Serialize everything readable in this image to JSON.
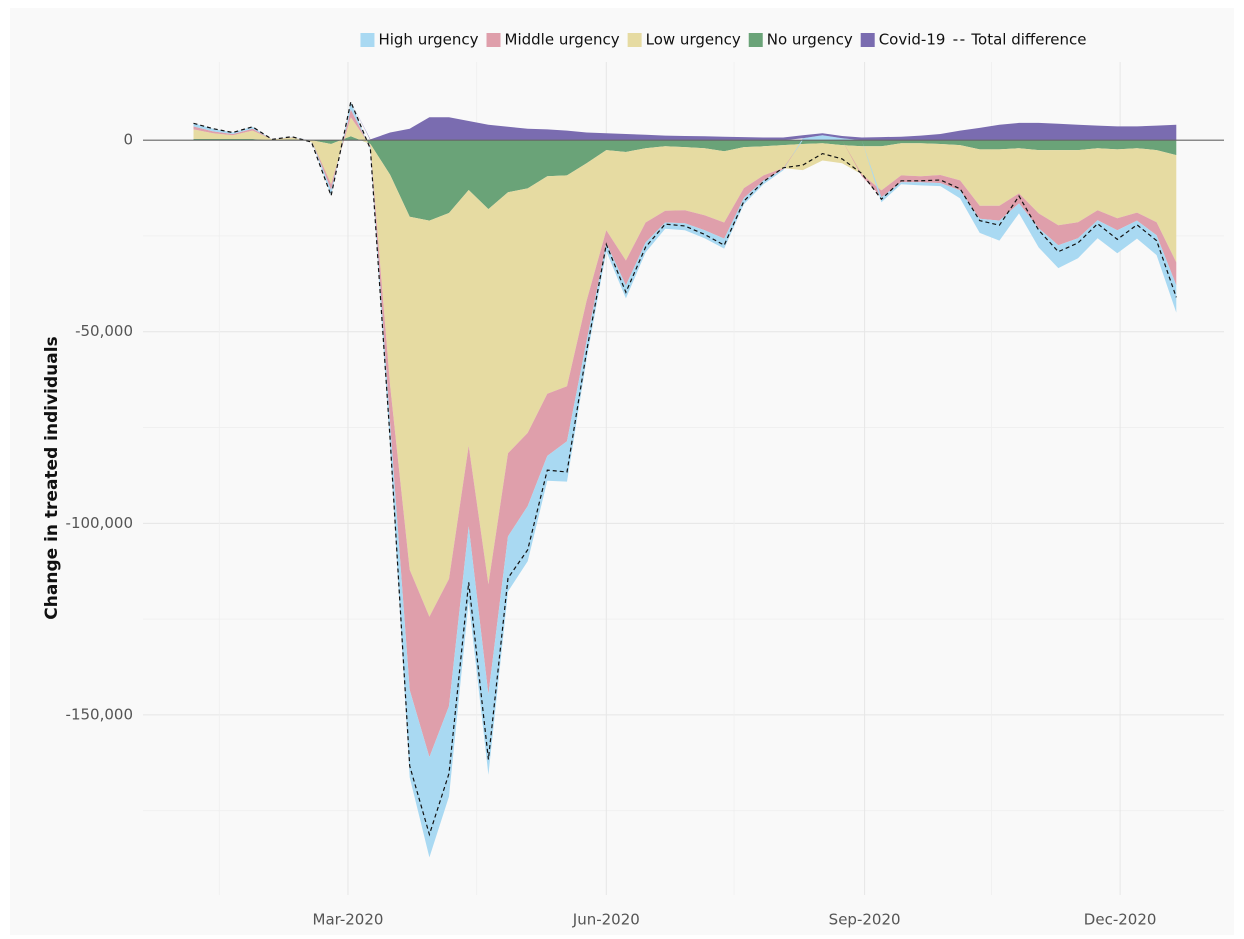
{
  "chart_data": {
    "type": "area",
    "y_label": "Change in treated individuals",
    "x": [
      "2020-01-06",
      "2020-01-13",
      "2020-01-20",
      "2020-01-27",
      "2020-02-03",
      "2020-02-10",
      "2020-02-17",
      "2020-02-24",
      "2020-03-02",
      "2020-03-09",
      "2020-03-16",
      "2020-03-23",
      "2020-03-30",
      "2020-04-06",
      "2020-04-13",
      "2020-04-20",
      "2020-04-27",
      "2020-05-04",
      "2020-05-11",
      "2020-05-18",
      "2020-05-25",
      "2020-06-01",
      "2020-06-08",
      "2020-06-15",
      "2020-06-22",
      "2020-06-29",
      "2020-07-06",
      "2020-07-13",
      "2020-07-20",
      "2020-07-27",
      "2020-08-03",
      "2020-08-10",
      "2020-08-17",
      "2020-08-24",
      "2020-08-31",
      "2020-09-07",
      "2020-09-14",
      "2020-09-21",
      "2020-09-28",
      "2020-10-05",
      "2020-10-12",
      "2020-10-19",
      "2020-10-26",
      "2020-11-02",
      "2020-11-09",
      "2020-11-16",
      "2020-11-23",
      "2020-11-30",
      "2020-12-07",
      "2020-12-14",
      "2020-12-21"
    ],
    "series": [
      {
        "name": "High urgency",
        "color": "#a9d9f2",
        "values": [
          800,
          700,
          400,
          500,
          0,
          100,
          0,
          -1500,
          2000,
          -500,
          -6000,
          -22800,
          -26200,
          -23600,
          -19600,
          -20900,
          -14400,
          -14400,
          -6500,
          -10500,
          -4700,
          -2100,
          -3400,
          -2600,
          -1600,
          -1800,
          -2100,
          -2600,
          -1600,
          -1000,
          -300,
          500,
          1300,
          500,
          0,
          -1300,
          -500,
          -800,
          -800,
          -2100,
          -3700,
          -5200,
          -2600,
          -5000,
          -6000,
          -5200,
          -4700,
          -6000,
          -4700,
          -5200,
          -7100
        ]
      },
      {
        "name": "Middle urgency",
        "color": "#df9fab",
        "values": [
          800,
          500,
          300,
          500,
          0,
          100,
          0,
          -1500,
          2000,
          -500,
          -10000,
          -31400,
          -36600,
          -33200,
          -21000,
          -28800,
          -21700,
          -19100,
          -16200,
          -14400,
          -10500,
          -3400,
          -6500,
          -5200,
          -3100,
          -3400,
          -3900,
          -4200,
          -2600,
          -1300,
          -300,
          0,
          0,
          0,
          -500,
          -1800,
          -1800,
          -1600,
          -2100,
          -2600,
          -3400,
          -3900,
          -2600,
          -3900,
          -5200,
          -4200,
          -2600,
          -3100,
          -2100,
          -3400,
          -6000
        ]
      },
      {
        "name": "Low urgency",
        "color": "#e6dba2",
        "values": [
          2500,
          1500,
          1000,
          2200,
          200,
          500,
          -500,
          -10500,
          5000,
          -500,
          -55000,
          -92100,
          -103400,
          -95500,
          -66800,
          -97900,
          -68100,
          -63800,
          -56800,
          -55000,
          -35900,
          -20900,
          -28300,
          -19400,
          -16800,
          -16500,
          -17500,
          -18600,
          -10700,
          -7600,
          -6000,
          -6800,
          -4500,
          -4700,
          -7300,
          -11500,
          -8400,
          -8600,
          -8100,
          -9200,
          -14700,
          -14700,
          -11800,
          -16500,
          -19600,
          -18800,
          -16200,
          -18000,
          -16800,
          -18800,
          -28000
        ]
      },
      {
        "name": "No urgency",
        "color": "#6aa378",
        "values": [
          300,
          300,
          300,
          300,
          0,
          200,
          0,
          -1000,
          1000,
          -1000,
          -9000,
          -20000,
          -21000,
          -19000,
          -13000,
          -18000,
          -13600,
          -12600,
          -9400,
          -9200,
          -6000,
          -2600,
          -3100,
          -2100,
          -1600,
          -1800,
          -2100,
          -2900,
          -1800,
          -1600,
          -1300,
          -1000,
          -800,
          -1300,
          -1600,
          -1600,
          -800,
          -800,
          -1000,
          -1300,
          -2400,
          -2400,
          -2100,
          -2600,
          -2600,
          -2600,
          -2100,
          -2400,
          -2100,
          -2600,
          -3900
        ]
      },
      {
        "name": "Covid-19",
        "color": "#7a6cb0",
        "values": [
          0,
          0,
          0,
          0,
          0,
          0,
          0,
          0,
          0,
          200,
          2000,
          3000,
          6000,
          6000,
          5000,
          4000,
          3500,
          3000,
          2800,
          2500,
          2000,
          1800,
          1600,
          1400,
          1200,
          1100,
          1000,
          900,
          800,
          700,
          700,
          800,
          500,
          600,
          700,
          800,
          900,
          1200,
          1600,
          2500,
          3200,
          4000,
          4500,
          4500,
          4300,
          4000,
          3800,
          3600,
          3600,
          3800,
          4000
        ]
      },
      {
        "name": "Total difference",
        "color": "#111111",
        "line": "dashed",
        "values": [
          4400,
          3000,
          2000,
          3500,
          200,
          900,
          -500,
          -14500,
          10000,
          -2300,
          -78000,
          -163300,
          -181200,
          -165300,
          -115400,
          -161600,
          -114300,
          -106900,
          -86100,
          -86600,
          -55100,
          -27200,
          -39700,
          -27900,
          -21900,
          -22400,
          -24600,
          -27400,
          -15900,
          -10800,
          -7200,
          -6500,
          -3500,
          -4900,
          -8700,
          -15400,
          -10600,
          -10600,
          -10400,
          -12700,
          -21000,
          -22200,
          -14600,
          -23500,
          -29100,
          -26800,
          -21800,
          -25900,
          -22100,
          -26200,
          -41000
        ]
      }
    ],
    "xlim": [
      "2019-12-19",
      "2021-01-07"
    ],
    "xticks": [
      {
        "value": "2020-03-01",
        "label": "Mar-2020"
      },
      {
        "value": "2020-06-01",
        "label": "Jun-2020"
      },
      {
        "value": "2020-09-01",
        "label": "Sep-2020"
      },
      {
        "value": "2020-12-01",
        "label": "Dec-2020"
      }
    ],
    "ylim": [
      -197000,
      20400
    ],
    "yticks": [
      0,
      {
        "value": -50000,
        "label": "-50,000"
      },
      {
        "value": -100000,
        "label": "-100,000"
      },
      {
        "value": -150000,
        "label": "-150,000"
      }
    ],
    "grid": true,
    "legend": "top"
  }
}
